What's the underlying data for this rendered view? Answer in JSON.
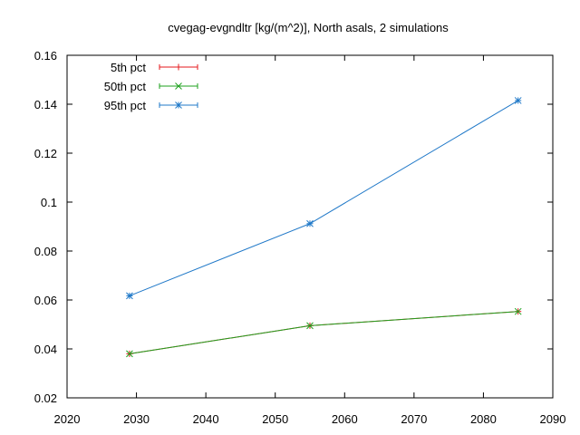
{
  "chart_data": {
    "type": "line",
    "title": "cvegag-evgndltr [kg/(m^2)], North asals, 2 simulations",
    "xlabel": "",
    "ylabel": "",
    "xlim": [
      2020,
      2090
    ],
    "ylim": [
      0.02,
      0.16
    ],
    "x_ticks": [
      2020,
      2030,
      2040,
      2050,
      2060,
      2070,
      2080,
      2090
    ],
    "y_ticks": [
      "0.02",
      "0.04",
      "0.06",
      "0.08",
      "0.1",
      "0.12",
      "0.14",
      "0.16"
    ],
    "legend_position": "top-left",
    "grid": false,
    "series": [
      {
        "name": "5th pct",
        "color": "#e41a1c",
        "marker": "plus",
        "x": [
          2029,
          2055,
          2085
        ],
        "values": [
          0.038,
          0.0495,
          0.0553
        ]
      },
      {
        "name": "50th pct",
        "color": "#1ea01e",
        "marker": "cross",
        "x": [
          2029,
          2055,
          2085
        ],
        "values": [
          0.038,
          0.0495,
          0.0553
        ]
      },
      {
        "name": "95th pct",
        "color": "#1f78c8",
        "marker": "star",
        "x": [
          2029,
          2055,
          2085
        ],
        "values": [
          0.0617,
          0.0912,
          0.1415
        ]
      }
    ]
  }
}
